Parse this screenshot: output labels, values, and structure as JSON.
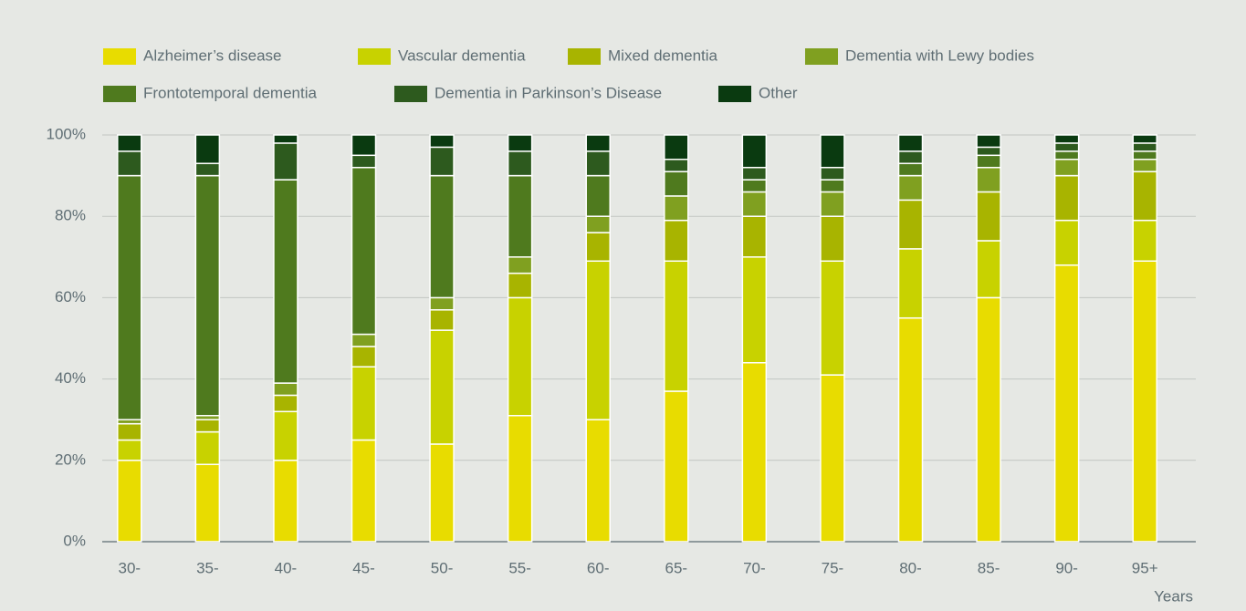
{
  "chart_data": {
    "type": "stacked_bar",
    "categories": [
      "30-",
      "35-",
      "40-",
      "45-",
      "50-",
      "55-",
      "60-",
      "65-",
      "70-",
      "75-",
      "80-",
      "85-",
      "90-",
      "95+"
    ],
    "x_label": "Years",
    "series": [
      {
        "name": "Alzheimer’s disease",
        "color": "#e8dc00",
        "values": [
          20,
          19,
          20,
          25,
          24,
          31,
          30,
          37,
          44,
          41,
          55,
          60,
          68,
          69
        ]
      },
      {
        "name": "Vascular dementia",
        "color": "#c8d200",
        "values": [
          5,
          8,
          12,
          18,
          28,
          29,
          39,
          32,
          26,
          28,
          17,
          14,
          11,
          10
        ]
      },
      {
        "name": "Mixed dementia",
        "color": "#a8b400",
        "values": [
          4,
          3,
          4,
          5,
          5,
          6,
          7,
          10,
          10,
          11,
          12,
          12,
          11,
          12
        ]
      },
      {
        "name": "Dementia with Lewy bodies",
        "color": "#80a020",
        "values": [
          1,
          1,
          3,
          3,
          3,
          4,
          4,
          6,
          6,
          6,
          6,
          6,
          4,
          3
        ]
      },
      {
        "name": "Frontotemporal dementia",
        "color": "#4f7a1e",
        "values": [
          60,
          59,
          50,
          41,
          30,
          20,
          10,
          6,
          3,
          3,
          3,
          3,
          2,
          2
        ]
      },
      {
        "name": "Dementia in Parkinson’s Disease",
        "color": "#2d5a1e",
        "values": [
          6,
          3,
          9,
          3,
          7,
          6,
          6,
          3,
          3,
          3,
          3,
          2,
          2,
          2
        ]
      },
      {
        "name": "Other",
        "color": "#0a3a10",
        "values": [
          4,
          7,
          2,
          5,
          3,
          4,
          4,
          6,
          8,
          8,
          4,
          3,
          2,
          2
        ]
      }
    ],
    "ylim": [
      0,
      100
    ],
    "yticks": [
      {
        "value": 0,
        "label": "0%"
      },
      {
        "value": 20,
        "label": "20%"
      },
      {
        "value": 40,
        "label": "40%"
      },
      {
        "value": 60,
        "label": "60%"
      },
      {
        "value": 80,
        "label": "80%"
      },
      {
        "value": 100,
        "label": "100%"
      }
    ],
    "grid": true
  }
}
